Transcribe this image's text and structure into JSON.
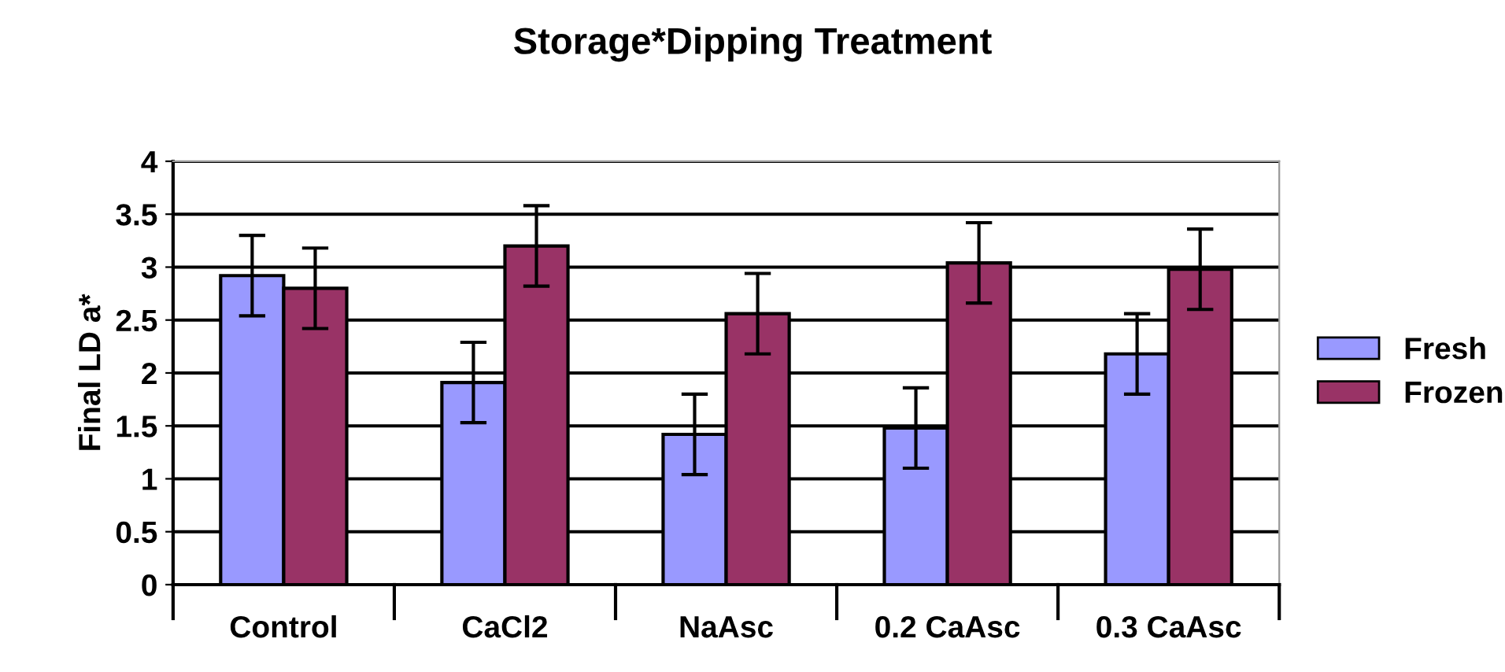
{
  "chart_data": {
    "type": "bar",
    "title": "Storage*Dipping Treatment",
    "ylabel": "Final LD a*",
    "categories": [
      "Control",
      "CaCl2",
      "NaAsc",
      "0.2 CaAsc",
      "0.3 CaAsc"
    ],
    "series": [
      {
        "name": "Fresh",
        "color": "#9999ff",
        "values": [
          2.92,
          1.91,
          1.42,
          1.48,
          2.18
        ],
        "errors": [
          0.38,
          0.38,
          0.38,
          0.38,
          0.38
        ]
      },
      {
        "name": "Frozen",
        "color": "#993366",
        "values": [
          2.8,
          3.2,
          2.56,
          3.04,
          2.98
        ],
        "errors": [
          0.38,
          0.38,
          0.38,
          0.38,
          0.38
        ]
      }
    ],
    "ylim": [
      0,
      4
    ],
    "yticks": [
      0,
      0.5,
      1,
      1.5,
      2,
      2.5,
      3,
      3.5,
      4
    ],
    "grid": "y",
    "legend": "right"
  }
}
